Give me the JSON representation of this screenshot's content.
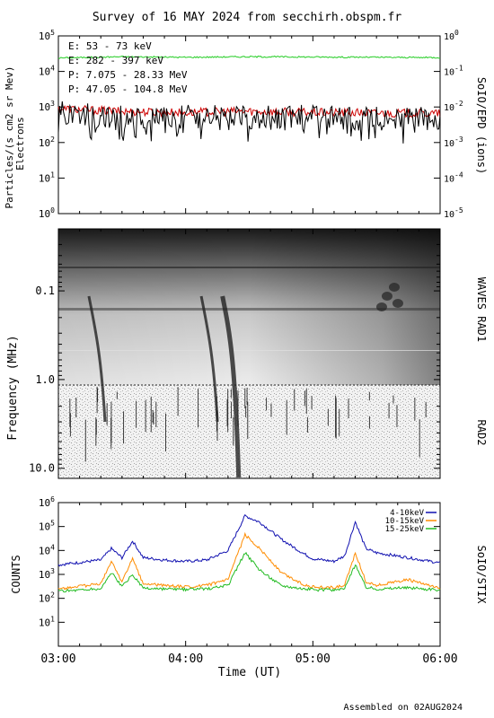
{
  "page": {
    "title": "Survey of 16 MAY 2024 from secchirh.obspm.fr",
    "footer": "Assembled on 02AUG2024",
    "x_axis_label": "Time (UT)",
    "x_ticks": [
      "03:00",
      "04:00",
      "05:00",
      "06:00"
    ]
  },
  "chart_data": [
    {
      "type": "line",
      "panel": "SoIO/EPD (ions)",
      "ylabel": "Particles/(s cm2 sr Mev)",
      "ylabel2": "Electrons",
      "right_label": "SoIO/EPD (ions)",
      "yscale": "log",
      "ylim": [
        1,
        100000
      ],
      "y_ticks": [
        "10^0",
        "10^1",
        "10^2",
        "10^3",
        "10^4",
        "10^5"
      ],
      "y2lim": [
        1e-05,
        1
      ],
      "y2_ticks": [
        "10^-5",
        "10^-4",
        "10^-3",
        "10^-2",
        "10^-1",
        "10^0"
      ],
      "xlim": [
        "03:00",
        "06:00"
      ],
      "legend_placement": "top-left",
      "series": [
        {
          "name": "E: 53 - 73 keV",
          "color": "#22cc22",
          "x": [
            "03:00",
            "03:30",
            "04:00",
            "04:30",
            "05:00",
            "05:30",
            "06:00"
          ],
          "values": [
            24000,
            26000,
            25000,
            26000,
            25500,
            25000,
            24500
          ]
        },
        {
          "name": "E: 282 - 397 keV",
          "color": "#cc0000",
          "x": [
            "03:00",
            "03:30",
            "04:00",
            "04:30",
            "05:00",
            "05:30",
            "06:00"
          ],
          "values": [
            900,
            750,
            700,
            760,
            700,
            680,
            650
          ]
        },
        {
          "name": "P: 7.075 - 28.33 MeV",
          "color": "#000000",
          "x": [
            "03:00",
            "03:30",
            "04:00",
            "04:30",
            "05:00",
            "05:30",
            "06:00"
          ],
          "values": [
            700,
            500,
            550,
            500,
            520,
            480,
            450
          ]
        },
        {
          "name": "P: 47.05 - 104.8 MeV",
          "color": "#0000cc",
          "x": [],
          "values": []
        }
      ]
    },
    {
      "type": "heatmap",
      "panel": "WAVES RAD1 / RAD2",
      "ylabel": "Frequency (MHz)",
      "yscale": "log",
      "inverted": true,
      "ylim": [
        0.02,
        13
      ],
      "y_ticks": [
        "0.1",
        "1.0",
        "10.0"
      ],
      "right_labels": [
        "WAVES RAD1",
        "RAD2"
      ],
      "xlim": [
        "03:00",
        "06:00"
      ],
      "bursts_ut": [
        "03:22",
        "04:15",
        "04:25",
        "05:35"
      ]
    },
    {
      "type": "line",
      "panel": "SoIO/STIX",
      "ylabel": "COUNTS",
      "right_label": "SoIO/STIX",
      "yscale": "log",
      "ylim": [
        1,
        1000000
      ],
      "y_ticks": [
        "10^1",
        "10^2",
        "10^3",
        "10^4",
        "10^5",
        "10^6"
      ],
      "xlim": [
        "03:00",
        "06:00"
      ],
      "legend_placement": "top-right",
      "series": [
        {
          "name": "4-10keV",
          "color": "#1010b0",
          "x": [
            "03:00",
            "03:20",
            "03:25",
            "03:30",
            "03:35",
            "03:40",
            "03:50",
            "04:00",
            "04:10",
            "04:20",
            "04:28",
            "04:35",
            "04:45",
            "04:55",
            "05:00",
            "05:10",
            "05:15",
            "05:20",
            "05:25",
            "05:30",
            "05:45",
            "06:00"
          ],
          "values": [
            2500,
            4000,
            12000,
            5000,
            25000,
            5000,
            4000,
            3500,
            4000,
            10000,
            280000,
            150000,
            30000,
            8000,
            4500,
            3500,
            6000,
            160000,
            12000,
            8000,
            5000,
            3000
          ]
        },
        {
          "name": "10-15keV",
          "color": "#ff8c00",
          "x": [
            "03:00",
            "03:20",
            "03:25",
            "03:30",
            "03:35",
            "03:40",
            "03:50",
            "04:00",
            "04:10",
            "04:20",
            "04:28",
            "04:35",
            "04:45",
            "04:55",
            "05:00",
            "05:10",
            "05:15",
            "05:20",
            "05:25",
            "05:30",
            "05:45",
            "06:00"
          ],
          "values": [
            250,
            400,
            3500,
            500,
            4500,
            400,
            350,
            300,
            350,
            600,
            45000,
            12000,
            1200,
            400,
            300,
            280,
            350,
            8000,
            500,
            350,
            600,
            250
          ]
        },
        {
          "name": "15-25keV",
          "color": "#22bb22",
          "x": [
            "03:00",
            "03:20",
            "03:25",
            "03:30",
            "03:35",
            "03:40",
            "03:50",
            "04:00",
            "04:10",
            "04:20",
            "04:28",
            "04:35",
            "04:45",
            "04:55",
            "05:00",
            "05:10",
            "05:15",
            "05:20",
            "05:25",
            "05:30",
            "05:45",
            "06:00"
          ],
          "values": [
            200,
            250,
            1200,
            300,
            1000,
            260,
            240,
            230,
            250,
            350,
            8000,
            1500,
            350,
            260,
            230,
            220,
            260,
            2500,
            300,
            250,
            280,
            220
          ]
        }
      ]
    }
  ]
}
